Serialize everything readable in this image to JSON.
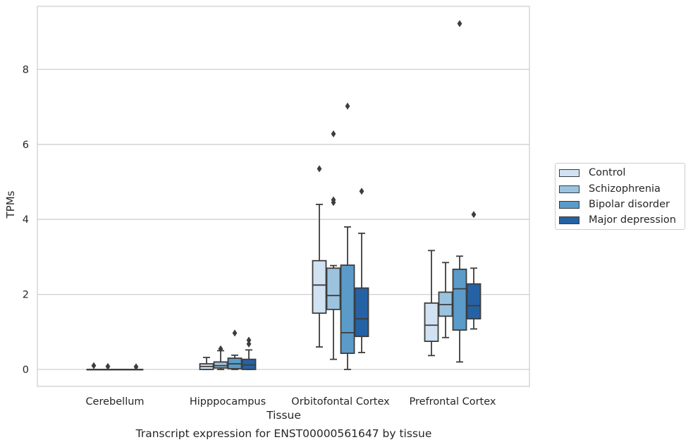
{
  "chart_data": {
    "type": "box",
    "title": "Transcript expression for ENST00000561647 by tissue",
    "xlabel": "Tissue",
    "ylabel": "TPMs",
    "ylim": [
      -0.45,
      9.7
    ],
    "yticks": [
      0,
      2,
      4,
      6,
      8
    ],
    "grid": "horizontal",
    "legend_position": "right",
    "categories": [
      "Cerebellum",
      "Hipppocampus",
      "Orbitofontal Cortex",
      "Prefrontal Cortex"
    ],
    "series": [
      {
        "name": "Control",
        "color": "#d1e2f2",
        "boxes": [
          {
            "min": 0,
            "q1": 0,
            "median": 0,
            "q3": 0,
            "max": 0,
            "outliers": [
              0.1
            ]
          },
          {
            "min": 0,
            "q1": 0,
            "median": 0.08,
            "q3": 0.15,
            "max": 0.32,
            "outliers": []
          },
          {
            "min": 0.6,
            "q1": 1.5,
            "median": 2.25,
            "q3": 2.9,
            "max": 4.4,
            "outliers": [
              5.35
            ]
          },
          {
            "min": 0.37,
            "q1": 0.75,
            "median": 1.18,
            "q3": 1.77,
            "max": 3.17,
            "outliers": []
          }
        ]
      },
      {
        "name": "Schizophrenia",
        "color": "#9bc3de",
        "boxes": [
          {
            "min": 0,
            "q1": 0,
            "median": 0,
            "q3": 0,
            "max": 0,
            "outliers": [
              0.08
            ]
          },
          {
            "min": 0,
            "q1": 0.04,
            "median": 0.1,
            "q3": 0.2,
            "max": 0.5,
            "outliers": [
              0.55
            ]
          },
          {
            "min": 0.27,
            "q1": 1.6,
            "median": 1.97,
            "q3": 2.7,
            "max": 2.77,
            "outliers": [
              4.45,
              4.52,
              6.28
            ]
          },
          {
            "min": 0.85,
            "q1": 1.42,
            "median": 1.73,
            "q3": 2.06,
            "max": 2.85,
            "outliers": []
          }
        ]
      },
      {
        "name": "Bipolar disorder",
        "color": "#5a9bc9",
        "boxes": [
          {
            "min": 0,
            "q1": 0,
            "median": 0,
            "q3": 0,
            "max": 0,
            "outliers": []
          },
          {
            "min": 0,
            "q1": 0.02,
            "median": 0.15,
            "q3": 0.3,
            "max": 0.38,
            "outliers": [
              0.97
            ]
          },
          {
            "min": 0,
            "q1": 0.43,
            "median": 0.98,
            "q3": 2.78,
            "max": 3.8,
            "outliers": [
              7.02
            ]
          },
          {
            "min": 0.2,
            "q1": 1.05,
            "median": 2.15,
            "q3": 2.67,
            "max": 3.02,
            "outliers": [
              9.22
            ]
          }
        ]
      },
      {
        "name": "Major depression",
        "color": "#2562a5",
        "boxes": [
          {
            "min": 0,
            "q1": 0,
            "median": 0,
            "q3": 0,
            "max": 0,
            "outliers": [
              0.07
            ]
          },
          {
            "min": 0,
            "q1": 0,
            "median": 0.12,
            "q3": 0.27,
            "max": 0.52,
            "outliers": [
              0.68,
              0.78
            ]
          },
          {
            "min": 0.45,
            "q1": 0.88,
            "median": 1.35,
            "q3": 2.17,
            "max": 3.63,
            "outliers": [
              4.75
            ]
          },
          {
            "min": 1.08,
            "q1": 1.35,
            "median": 1.7,
            "q3": 2.28,
            "max": 2.7,
            "outliers": [
              4.13
            ]
          }
        ]
      }
    ]
  }
}
